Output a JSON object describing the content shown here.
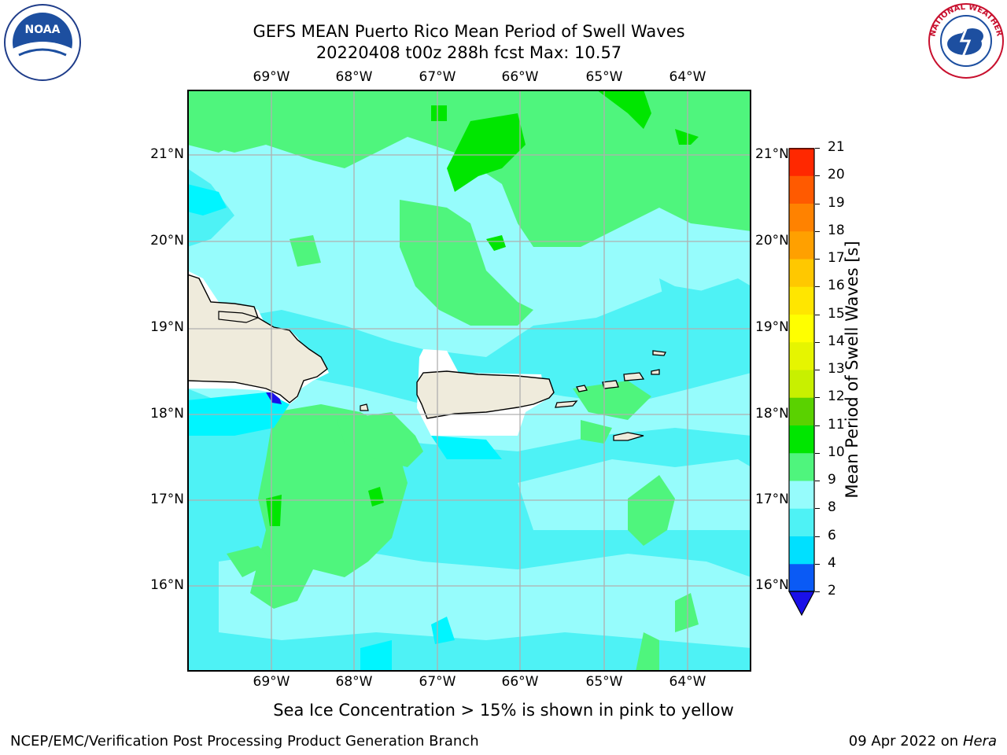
{
  "header": {
    "title_line1": "GEFS MEAN Puerto Rico Mean Period of Swell Waves",
    "title_line2": "20220408 t00z 288h fcst   Max: 10.57"
  },
  "logos": {
    "left": {
      "text": "NOAA",
      "ring_text": "NATIONAL OCEANIC AND ATMOSPHERIC ADMINISTRATION · U.S. DEPARTMENT OF COMMERCE"
    },
    "right": {
      "ring_text": "NATIONAL WEATHER SERVICE"
    }
  },
  "map": {
    "lon_labels": [
      "69°W",
      "68°W",
      "67°W",
      "66°W",
      "65°W",
      "64°W"
    ],
    "lat_labels": [
      "21°N",
      "20°N",
      "19°N",
      "18°N",
      "17°N",
      "16°N"
    ],
    "ocean_base_color": "#96fcfc",
    "land_color": "#efebdc",
    "grid_color": "#b0b0b0"
  },
  "colorbar": {
    "label": "Mean Period of Swell Waves [s]",
    "ticks": [
      "2",
      "4",
      "6",
      "8",
      "9",
      "10",
      "11",
      "12",
      "13",
      "14",
      "15",
      "16",
      "17",
      "18",
      "19",
      "20",
      "21"
    ],
    "colors": [
      "#0a5af5",
      "#00e0ff",
      "#4ef2f5",
      "#96fcfc",
      "#4ff57d",
      "#00e600",
      "#5ad200",
      "#c8f000",
      "#e6f500",
      "#ffff00",
      "#ffe600",
      "#ffc800",
      "#ffa000",
      "#ff8200",
      "#ff5a00",
      "#ff2800",
      "#ff0000"
    ],
    "under_color": "#1a10e8"
  },
  "note": "Sea Ice Concentration > 15% is shown in pink to yellow",
  "footer": {
    "left": "NCEP/EMC/Verification Post Processing Product Generation Branch",
    "date": "09 Apr 2022 on ",
    "host": "Hera"
  }
}
